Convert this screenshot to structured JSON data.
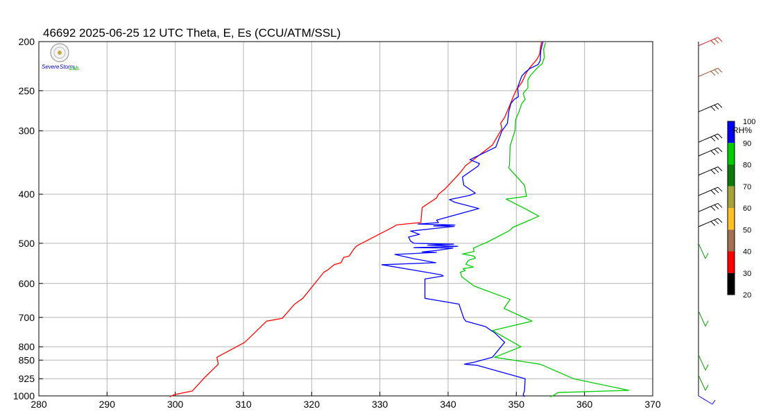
{
  "chart_data": {
    "type": "line",
    "title": "46692  2025-06-25 12 UTC  Theta, E, Es (CCU/ATM/SSL)",
    "xlabel": "",
    "ylabel": "",
    "xlim": [
      280,
      370
    ],
    "ylim": [
      1000,
      200
    ],
    "y_scale": "log-pressure",
    "x_ticks": [
      280,
      290,
      300,
      310,
      320,
      330,
      340,
      350,
      360,
      370
    ],
    "y_ticks": [
      200,
      250,
      300,
      400,
      500,
      600,
      700,
      800,
      850,
      925,
      1000
    ],
    "grid": true,
    "series": [
      {
        "color": "#ff0000",
        "points": [
          [
            299.2,
            1004
          ],
          [
            299.8,
            995
          ],
          [
            302.5,
            978
          ],
          [
            304.2,
            923
          ],
          [
            306.3,
            866
          ],
          [
            306.1,
            839
          ],
          [
            310.2,
            784
          ],
          [
            313.4,
            712
          ],
          [
            315.7,
            703
          ],
          [
            317.5,
            659
          ],
          [
            318.7,
            642
          ],
          [
            321.8,
            570
          ],
          [
            322.3,
            565
          ],
          [
            323.3,
            551
          ],
          [
            324.3,
            546
          ],
          [
            324.7,
            533
          ],
          [
            325.5,
            530
          ],
          [
            326.1,
            515
          ],
          [
            326.6,
            506
          ],
          [
            332.0,
            464
          ],
          [
            332.4,
            460
          ],
          [
            333.7,
            458
          ],
          [
            336.0,
            455
          ],
          [
            336.2,
            425
          ],
          [
            338.3,
            407
          ],
          [
            338.6,
            400
          ],
          [
            339.5,
            391
          ],
          [
            341.6,
            365
          ],
          [
            342.6,
            351
          ],
          [
            346.5,
            320
          ],
          [
            347.9,
            297
          ],
          [
            347.7,
            290
          ],
          [
            348.3,
            282
          ],
          [
            348.9,
            270
          ],
          [
            349.1,
            266
          ],
          [
            349.5,
            258
          ],
          [
            350.0,
            249
          ],
          [
            350.8,
            241
          ],
          [
            351.5,
            230
          ],
          [
            352.0,
            225
          ],
          [
            353.0,
            217
          ],
          [
            353.4,
            212
          ],
          [
            353.7,
            200
          ]
        ]
      },
      {
        "color": "#0000ff",
        "points": [
          [
            351.2,
            1004
          ],
          [
            351.0,
            995
          ],
          [
            351.2,
            978
          ],
          [
            351.3,
            925
          ],
          [
            344.2,
            870
          ],
          [
            342.4,
            866
          ],
          [
            344.0,
            857
          ],
          [
            346.5,
            839
          ],
          [
            348.3,
            784
          ],
          [
            346.8,
            750
          ],
          [
            346.3,
            743
          ],
          [
            345.5,
            730
          ],
          [
            342.6,
            712
          ],
          [
            342.3,
            703
          ],
          [
            341.6,
            659
          ],
          [
            336.6,
            642
          ],
          [
            336.6,
            588
          ],
          [
            339.3,
            580
          ],
          [
            339.0,
            577
          ],
          [
            336.7,
            570
          ],
          [
            330.3,
            551
          ],
          [
            338.2,
            546
          ],
          [
            334.9,
            536
          ],
          [
            332.2,
            526
          ],
          [
            338.3,
            521
          ],
          [
            336.2,
            520
          ],
          [
            338.6,
            516
          ],
          [
            340.7,
            511
          ],
          [
            335.0,
            510
          ],
          [
            341.4,
            507
          ],
          [
            337.0,
            504
          ],
          [
            340.8,
            502
          ],
          [
            335.0,
            500
          ],
          [
            334.5,
            495
          ],
          [
            334.2,
            486
          ],
          [
            335.8,
            480
          ],
          [
            334.5,
            473
          ],
          [
            340.9,
            463
          ],
          [
            337.9,
            462
          ],
          [
            341.0,
            460
          ],
          [
            335.6,
            458
          ],
          [
            338.6,
            455
          ],
          [
            338.3,
            450
          ],
          [
            344.5,
            427
          ],
          [
            341.0,
            415
          ],
          [
            340.2,
            410
          ],
          [
            343.2,
            402
          ],
          [
            344.0,
            398
          ],
          [
            342.3,
            384
          ],
          [
            342.1,
            370
          ],
          [
            344.4,
            352
          ],
          [
            344.6,
            348
          ],
          [
            343.2,
            342
          ],
          [
            347.0,
            323
          ],
          [
            347.9,
            300
          ],
          [
            348.7,
            290
          ],
          [
            348.9,
            275
          ],
          [
            349.2,
            265
          ],
          [
            349.7,
            260
          ],
          [
            350.3,
            257
          ],
          [
            350.2,
            246
          ],
          [
            350.8,
            234
          ],
          [
            351.3,
            230
          ],
          [
            352.0,
            226
          ],
          [
            353.2,
            222
          ],
          [
            353.5,
            218
          ],
          [
            353.6,
            208
          ],
          [
            353.9,
            200
          ]
        ]
      },
      {
        "color": "#00cc00",
        "points": [
          [
            355.0,
            1004
          ],
          [
            355.6,
            995
          ],
          [
            356.1,
            985
          ],
          [
            366.5,
            975
          ],
          [
            358.4,
            925
          ],
          [
            353.5,
            866
          ],
          [
            346.8,
            839
          ],
          [
            350.7,
            800
          ],
          [
            346.5,
            743
          ],
          [
            352.3,
            712
          ],
          [
            351.4,
            703
          ],
          [
            348.2,
            672
          ],
          [
            349.1,
            645
          ],
          [
            343.8,
            607
          ],
          [
            342.0,
            582
          ],
          [
            341.8,
            570
          ],
          [
            342.5,
            566
          ],
          [
            342.2,
            561
          ],
          [
            343.7,
            557
          ],
          [
            342.6,
            550
          ],
          [
            343.0,
            540
          ],
          [
            344.0,
            535
          ],
          [
            343.8,
            530
          ],
          [
            342.1,
            525
          ],
          [
            343.8,
            519
          ],
          [
            343.7,
            511
          ],
          [
            345.8,
            497
          ],
          [
            349.0,
            472
          ],
          [
            349.5,
            465
          ],
          [
            353.3,
            442
          ],
          [
            351.4,
            428
          ],
          [
            348.5,
            409
          ],
          [
            351.5,
            404
          ],
          [
            351.2,
            384
          ],
          [
            348.9,
            355
          ],
          [
            349.0,
            350
          ],
          [
            349.1,
            321
          ],
          [
            349.8,
            300
          ],
          [
            349.9,
            285
          ],
          [
            350.4,
            275
          ],
          [
            350.8,
            265
          ],
          [
            351.3,
            260
          ],
          [
            351.0,
            253
          ],
          [
            351.7,
            247
          ],
          [
            351.7,
            238
          ],
          [
            352.1,
            233
          ],
          [
            353.0,
            226
          ],
          [
            353.8,
            221
          ],
          [
            354.1,
            215
          ],
          [
            354.0,
            207
          ],
          [
            354.3,
            201
          ]
        ]
      }
    ],
    "colorbar": {
      "title": "RH%",
      "ticks": [
        "100",
        "90",
        "80",
        "70",
        "60",
        "50",
        "40",
        "30",
        "20"
      ],
      "bands": [
        {
          "from": 90,
          "to": 100,
          "color": "#0000ff"
        },
        {
          "from": 80,
          "to": 90,
          "color": "#00cc00"
        },
        {
          "from": 70,
          "to": 80,
          "color": "#0e7a0e"
        },
        {
          "from": 60,
          "to": 70,
          "color": "#a8a23a"
        },
        {
          "from": 50,
          "to": 60,
          "color": "#ffc125"
        },
        {
          "from": 40,
          "to": 50,
          "color": "#a07050"
        },
        {
          "from": 30,
          "to": 40,
          "color": "#ff0000"
        },
        {
          "from": 20,
          "to": 30,
          "color": "#000000"
        }
      ]
    },
    "wind_barbs": [
      {
        "p": 200,
        "color": "#cc2222"
      },
      {
        "p": 230,
        "color": "#a0522d"
      },
      {
        "p": 270,
        "color": "#000000"
      },
      {
        "p": 310,
        "color": "#000000"
      },
      {
        "p": 330,
        "color": "#000000"
      },
      {
        "p": 360,
        "color": "#000000"
      },
      {
        "p": 395,
        "color": "#000000"
      },
      {
        "p": 425,
        "color": "#000000"
      },
      {
        "p": 455,
        "color": "#000000"
      },
      {
        "p": 500,
        "color": "#009900"
      },
      {
        "p": 680,
        "color": "#009900"
      },
      {
        "p": 830,
        "color": "#009900"
      },
      {
        "p": 910,
        "color": "#009900"
      },
      {
        "p": 1000,
        "color": "#0000ff"
      }
    ]
  },
  "logo": {
    "text_line1": "Severe",
    "text_line2": "Storm",
    "text_line3": "Lab."
  }
}
